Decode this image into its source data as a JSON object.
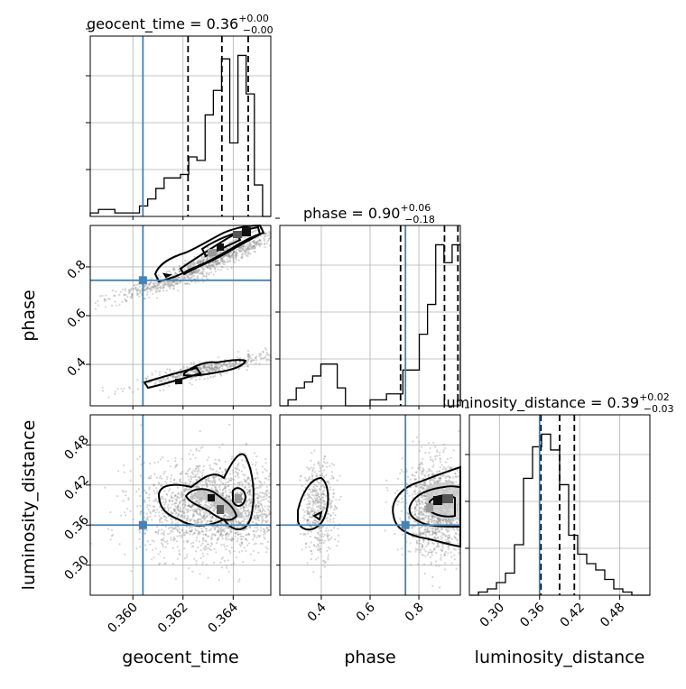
{
  "parameters": [
    "geocent_time",
    "phase",
    "luminosity_distance"
  ],
  "colors": {
    "truth": "#4682b4",
    "hist": "#000000",
    "grid": "#b0b0b0",
    "points": "#888888"
  },
  "titles": [
    {
      "prefix": "geocent_time = 0.36",
      "sup": "+0.00",
      "sub": "−0.00"
    },
    {
      "prefix": "phase = 0.90",
      "sup": "+0.06",
      "sub": "−0.18"
    },
    {
      "prefix": "luminosity_distance = 0.39",
      "sup": "+0.02",
      "sub": "−0.03"
    }
  ],
  "axis_labels": {
    "x": [
      "geocent_time",
      "phase",
      "luminosity_distance"
    ],
    "y": [
      "phase",
      "luminosity_distance"
    ]
  },
  "chart_data": {
    "type": "corner",
    "ranges": [
      [
        0.3583,
        0.3655
      ],
      [
        0.23,
        0.97
      ],
      [
        0.255,
        0.525
      ]
    ],
    "ticks": [
      [
        0.36,
        0.362,
        0.364
      ],
      [
        0.4,
        0.6,
        0.8
      ],
      [
        0.3,
        0.36,
        0.42,
        0.48
      ]
    ],
    "tick_labels": [
      [
        "0.360",
        "0.362",
        "0.364"
      ],
      [
        "0.4",
        "0.6",
        "0.8"
      ],
      [
        "0.30",
        "0.36",
        "0.42",
        "0.48"
      ]
    ],
    "truths": [
      0.3604,
      0.745,
      0.36
    ],
    "quantiles": [
      [
        0.3622,
        0.36355,
        0.3646
      ],
      [
        0.725,
        0.905,
        0.96
      ],
      [
        0.362,
        0.39,
        0.412
      ]
    ],
    "hist": [
      {
        "edges_range": [
          0.3583,
          0.3655
        ],
        "counts": [
          1,
          2,
          2,
          1,
          1,
          1,
          3,
          5,
          8,
          11,
          11,
          12,
          17,
          16,
          29,
          36,
          45,
          21,
          46,
          35,
          9,
          0
        ]
      },
      {
        "edges_range": [
          0.23,
          0.97
        ],
        "counts": [
          0,
          1,
          3,
          4,
          5,
          7,
          7,
          3,
          0,
          0,
          0,
          1,
          1,
          2,
          2,
          6,
          6,
          12,
          17,
          27,
          24,
          27
        ]
      },
      {
        "edges_range": [
          0.255,
          0.525
        ],
        "counts": [
          0,
          1,
          2,
          4,
          7,
          16,
          37,
          47,
          51,
          46,
          35,
          19,
          13,
          10,
          8,
          5,
          2,
          1,
          0,
          0
        ]
      }
    ],
    "scatter_blobs": [
      {
        "xi": 0,
        "yi": 1,
        "cx": 0.3635,
        "cy": 0.84,
        "sx": 0.0012,
        "sy": 0.05,
        "rho": 0.93,
        "n": 650
      },
      {
        "xi": 0,
        "yi": 1,
        "cx": 0.3612,
        "cy": 0.73,
        "sx": 0.0012,
        "sy": 0.04,
        "rho": 0.9,
        "n": 320
      },
      {
        "xi": 0,
        "yi": 1,
        "cx": 0.363,
        "cy": 0.38,
        "sx": 0.0014,
        "sy": 0.035,
        "rho": 0.9,
        "n": 500
      },
      {
        "xi": 0,
        "yi": 2,
        "cx": 0.3633,
        "cy": 0.385,
        "sx": 0.0015,
        "sy": 0.035,
        "rho": 0.0,
        "n": 2000
      },
      {
        "xi": 1,
        "yi": 2,
        "cx": 0.39,
        "cy": 0.385,
        "sx": 0.035,
        "sy": 0.035,
        "rho": 0.0,
        "n": 450
      },
      {
        "xi": 1,
        "yi": 2,
        "cx": 0.88,
        "cy": 0.385,
        "sx": 0.07,
        "sy": 0.035,
        "rho": 0.0,
        "n": 1400
      }
    ]
  }
}
